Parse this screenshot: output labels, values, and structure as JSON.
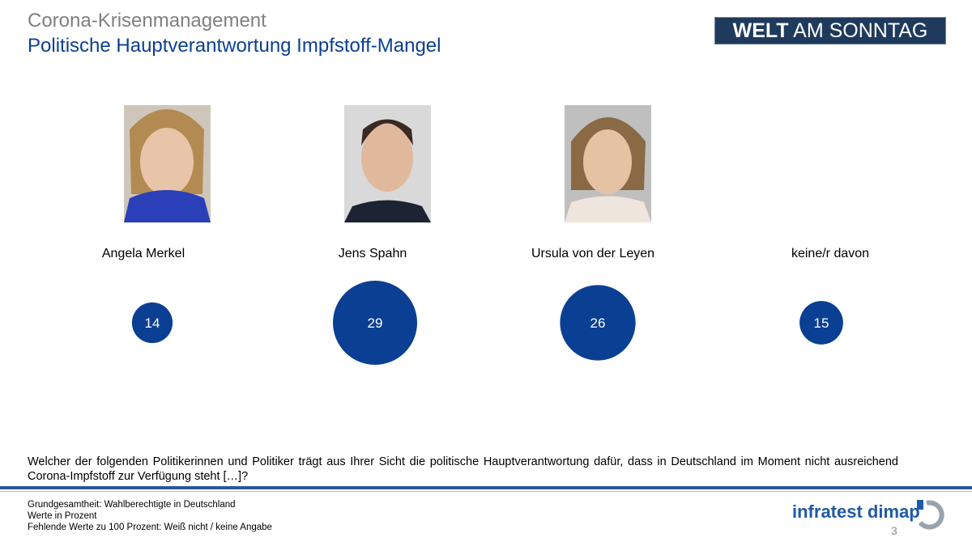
{
  "header": {
    "title": "Corona-Krisenmanagement",
    "subtitle": "Politische Hauptverantwortung Impfstoff-Mangel"
  },
  "logo": {
    "bold": "WELT",
    "rest": "AM SONNTAG"
  },
  "chart_data": {
    "type": "bubble",
    "categories": [
      "Angela Merkel",
      "Jens Spahn",
      "Ursula von der Leyen",
      "keine/r davon"
    ],
    "values": [
      14,
      29,
      26,
      15
    ],
    "color": "#0b3f93"
  },
  "question": "Welcher der folgenden Politikerinnen und Politiker trägt aus Ihrer Sicht die politische Hauptverantwortung dafür, dass in Deutschland im Moment nicht ausreichend Corona-Impfstoff zur Verfügung steht […]?",
  "footnotes": [
    "Grundgesamtheit: Wahlberechtigte in Deutschland",
    "Werte in Prozent",
    "Fehlende Werte zu 100 Prozent: Weiß nicht / keine Angabe"
  ],
  "footer": {
    "company": "infratest dimap",
    "page": 3
  }
}
